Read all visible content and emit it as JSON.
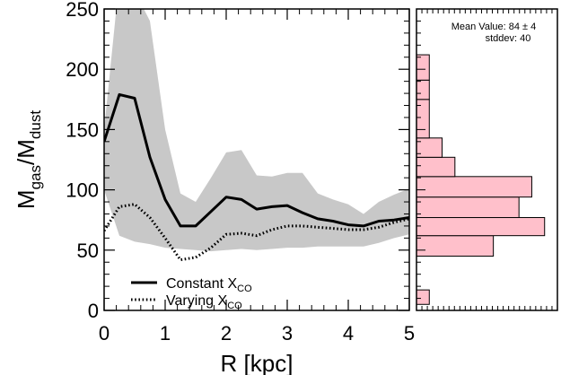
{
  "chart_data": [
    {
      "type": "line",
      "xlabel": "R [kpc]",
      "ylabel": {
        "main": "M",
        "sub1": "gas",
        "slash": "/M",
        "sub2": "dust"
      },
      "xlim": [
        0,
        5
      ],
      "ylim": [
        0,
        250
      ],
      "x_ticks": [
        "0",
        "1",
        "2",
        "3",
        "4",
        "5"
      ],
      "y_ticks": [
        "0",
        "50",
        "100",
        "150",
        "200",
        "250"
      ],
      "grid": false,
      "legend_position": "bottom-left",
      "band": {
        "x": [
          0.0,
          0.25,
          0.5,
          0.75,
          1.0,
          1.25,
          1.5,
          1.75,
          2.0,
          2.25,
          2.5,
          2.75,
          3.0,
          3.25,
          3.5,
          3.75,
          4.0,
          4.25,
          4.5,
          4.75,
          5.0
        ],
        "upper": [
          150,
          275,
          265,
          240,
          150,
          97,
          90,
          110,
          131,
          133,
          112,
          111,
          114,
          114,
          97,
          92,
          88,
          80,
          90,
          96,
          101
        ],
        "lower": [
          100,
          62,
          57,
          55,
          52,
          51,
          50,
          49,
          50,
          51,
          50,
          51,
          52,
          52,
          53,
          53,
          53,
          53,
          56,
          60,
          63
        ],
        "color": "#c8c8c8"
      },
      "series": [
        {
          "name": {
            "text": "Constant X",
            "sub": "CO"
          },
          "style": "solid",
          "color": "#000000",
          "x": [
            0.0,
            0.25,
            0.5,
            0.75,
            1.0,
            1.25,
            1.5,
            1.75,
            2.0,
            2.25,
            2.5,
            2.75,
            3.0,
            3.25,
            3.5,
            3.75,
            4.0,
            4.25,
            4.5,
            4.75,
            5.0
          ],
          "y": [
            140,
            179,
            176,
            127,
            92,
            70,
            70,
            82,
            94,
            92,
            84,
            86,
            87,
            81,
            76,
            74,
            71,
            70,
            74,
            75,
            77
          ]
        },
        {
          "name": {
            "text": "Varying X",
            "sub": "CO"
          },
          "style": "dotted",
          "color": "#000000",
          "x": [
            0.0,
            0.25,
            0.5,
            0.75,
            1.0,
            1.25,
            1.5,
            1.75,
            2.0,
            2.25,
            2.5,
            2.75,
            3.0,
            3.25,
            3.5,
            3.75,
            4.0,
            4.25,
            4.5,
            4.75,
            5.0
          ],
          "y": [
            66,
            86,
            88,
            77,
            60,
            42,
            44,
            52,
            63,
            64,
            62,
            67,
            70,
            70,
            69,
            68,
            67,
            67,
            69,
            73,
            76
          ]
        }
      ]
    },
    {
      "type": "bar",
      "orientation": "horizontal",
      "bar_color": "#ffc0cb",
      "bins": [
        {
          "from": 5,
          "to": 17,
          "count": 1
        },
        {
          "from": 45,
          "to": 62,
          "count": 6
        },
        {
          "from": 62,
          "to": 77,
          "count": 10
        },
        {
          "from": 77,
          "to": 94,
          "count": 8
        },
        {
          "from": 94,
          "to": 111,
          "count": 9
        },
        {
          "from": 111,
          "to": 127,
          "count": 3
        },
        {
          "from": 127,
          "to": 143,
          "count": 2
        },
        {
          "from": 143,
          "to": 175,
          "count": 1
        },
        {
          "from": 175,
          "to": 191,
          "count": 1
        },
        {
          "from": 191,
          "to": 212,
          "count": 1
        }
      ],
      "count_max": 11,
      "annotation": {
        "line1": "Mean Value: 84 ± 4",
        "line2": "stddev: 40"
      }
    }
  ]
}
